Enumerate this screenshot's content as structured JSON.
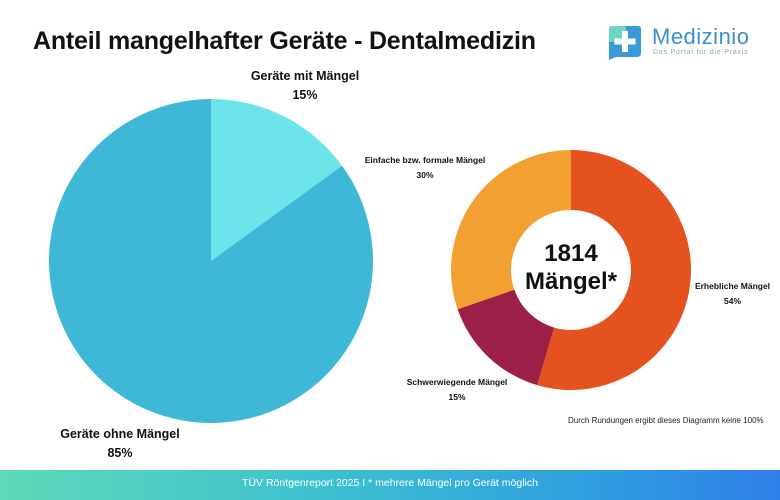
{
  "header": {
    "title": "Anteil mangelhafter Geräte - Dentalmedizin"
  },
  "logo": {
    "name": "Medizinio",
    "tagline": "Das Portal für die Praxis"
  },
  "chart_data": [
    {
      "type": "pie",
      "slices": [
        {
          "name": "Geräte mit Mängel",
          "value": 15,
          "label": "15%",
          "color": "#6ce4ea"
        },
        {
          "name": "Geräte ohne Mängel",
          "value": 85,
          "label": "85%",
          "color": "#3fb8d8"
        }
      ]
    },
    {
      "type": "pie",
      "donut": true,
      "center_text": [
        "1814",
        "Mängel*"
      ],
      "slices": [
        {
          "name": "Erhebliche Mängel",
          "value": 54,
          "label": "54%",
          "color": "#e4521f"
        },
        {
          "name": "Schwerwiegende Mängel",
          "value": 15,
          "label": "15%",
          "color": "#9c1f48"
        },
        {
          "name": "Einfache bzw. formale Mängel",
          "value": 30,
          "label": "30%",
          "color": "#f3a032"
        }
      ]
    }
  ],
  "note": "Durch Rundungen ergibt dieses Diagramm keine 100%",
  "footer": "TÜV Röntgenreport 2025 I * mehrere Mängel pro Gerät möglich"
}
